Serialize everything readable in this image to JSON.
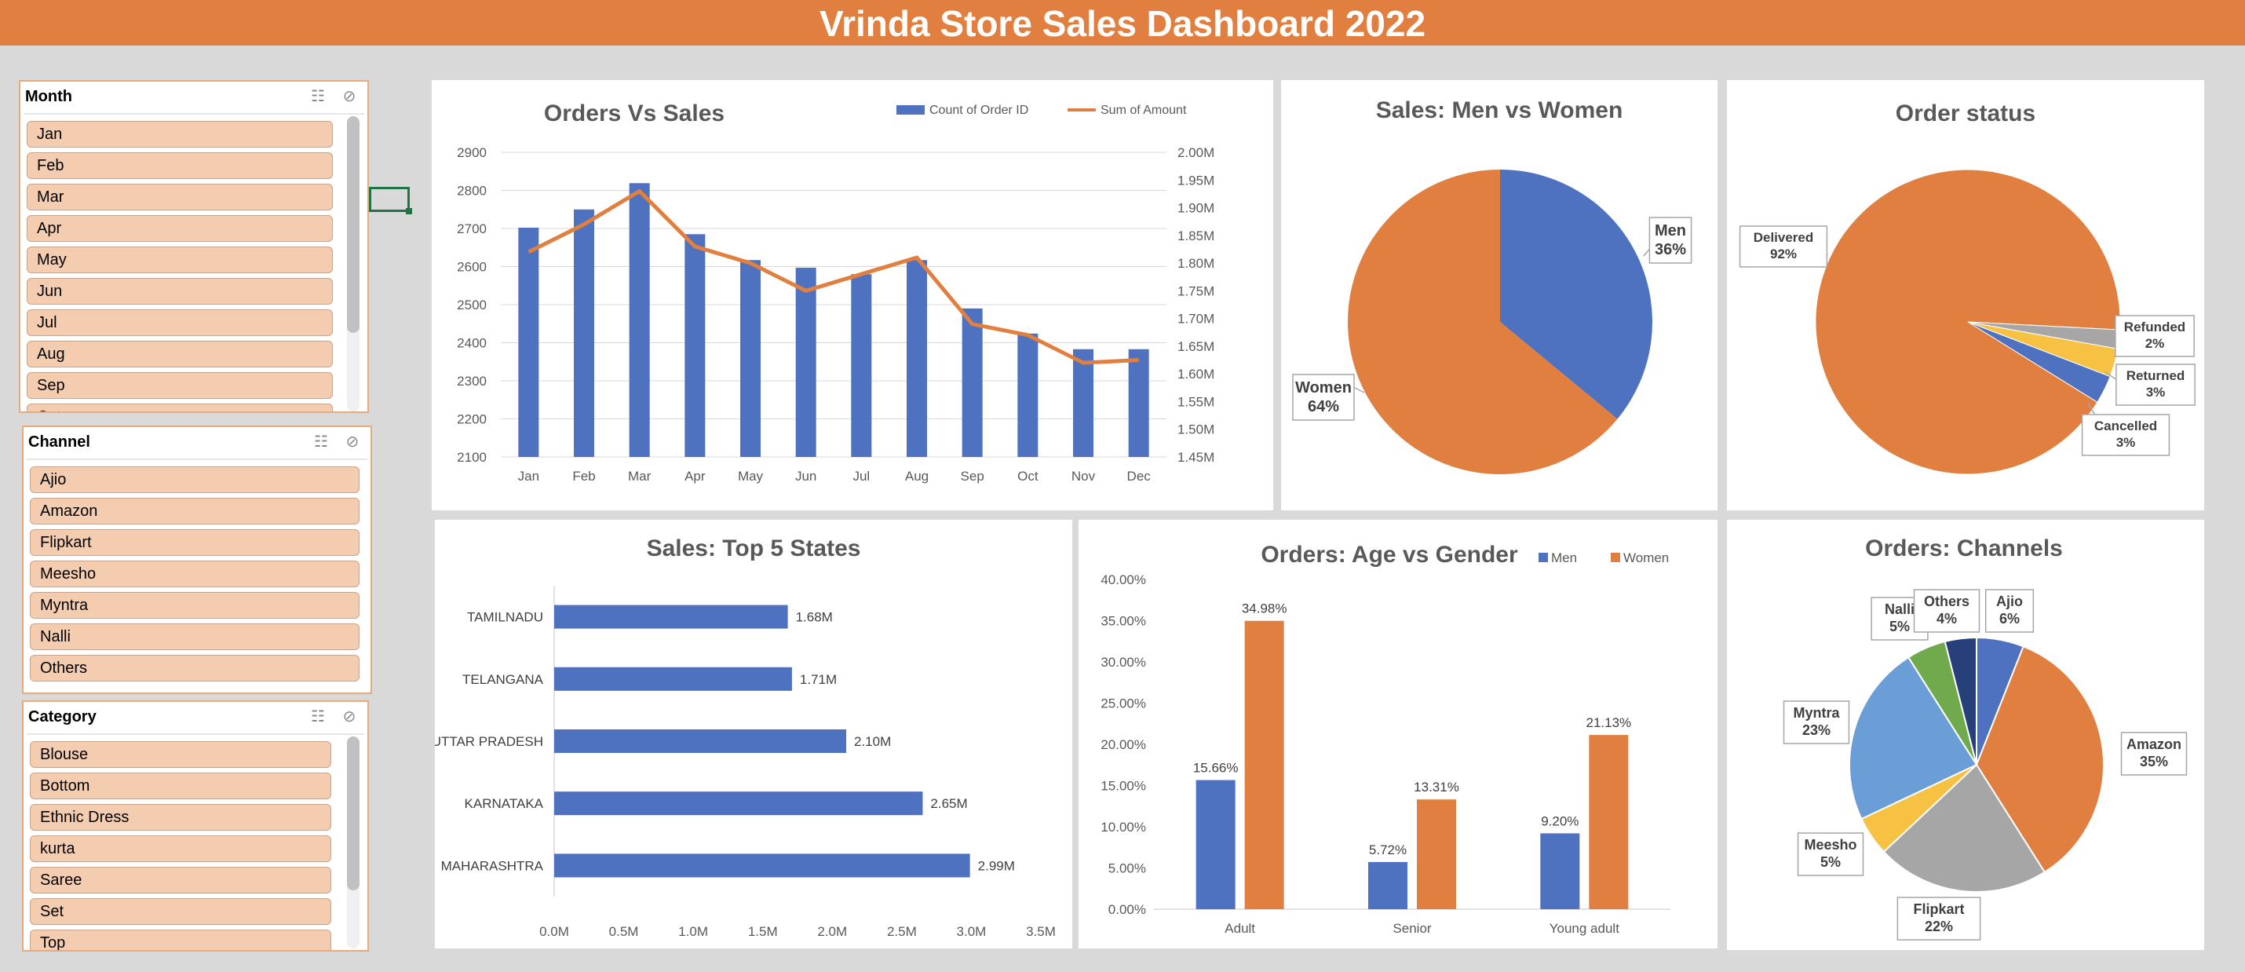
{
  "title": "Vrinda Store Sales Dashboard 2022",
  "slicers": {
    "month": {
      "title": "Month",
      "items": [
        "Jan",
        "Feb",
        "Mar",
        "Apr",
        "May",
        "Jun",
        "Jul",
        "Aug",
        "Sep",
        "Oct"
      ]
    },
    "channel": {
      "title": "Channel",
      "items": [
        "Ajio",
        "Amazon",
        "Flipkart",
        "Meesho",
        "Myntra",
        "Nalli",
        "Others"
      ]
    },
    "category": {
      "title": "Category",
      "items": [
        "Blouse",
        "Bottom",
        "Ethnic Dress",
        "kurta",
        "Saree",
        "Set",
        "Top"
      ]
    }
  },
  "colors": {
    "blue": "#4e71c0",
    "orange": "#e07f3f",
    "gray": "#a6a6a6",
    "yellow": "#f7c243",
    "lightblue": "#6b9dd6",
    "green": "#71a94d",
    "navy": "#27407a"
  },
  "chart_data": [
    {
      "id": "orders-vs-sales",
      "type": "bar+line",
      "title": "Orders Vs Sales",
      "categories": [
        "Jan",
        "Feb",
        "Mar",
        "Apr",
        "May",
        "Jun",
        "Jul",
        "Aug",
        "Sep",
        "Oct",
        "Nov",
        "Dec"
      ],
      "series": [
        {
          "name": "Count of Order ID",
          "type": "bar",
          "axis": "left",
          "values": [
            2702,
            2750,
            2819,
            2685,
            2617,
            2597,
            2580,
            2617,
            2490,
            2424,
            2383,
            2383
          ]
        },
        {
          "name": "Sum of Amount",
          "type": "line",
          "axis": "right",
          "values": [
            1.82,
            1.87,
            1.93,
            1.83,
            1.8,
            1.75,
            1.78,
            1.81,
            1.69,
            1.67,
            1.62,
            1.625
          ]
        }
      ],
      "ylim_left": [
        2100,
        2900
      ],
      "yticks_left": [
        "2900",
        "2800",
        "2700",
        "2600",
        "2500",
        "2400",
        "2300",
        "2200",
        "2100"
      ],
      "ylim_right": [
        1.45,
        2.0
      ],
      "yticks_right": [
        "2.00M",
        "1.95M",
        "1.90M",
        "1.85M",
        "1.80M",
        "1.75M",
        "1.70M",
        "1.65M",
        "1.60M",
        "1.55M",
        "1.50M",
        "1.45M"
      ],
      "legend": "top-right"
    },
    {
      "id": "sales-men-women",
      "type": "pie",
      "title": "Sales: Men vs Women",
      "slices": [
        {
          "name": "Men",
          "value": 36,
          "label": "36%"
        },
        {
          "name": "Women",
          "value": 64,
          "label": "64%"
        }
      ]
    },
    {
      "id": "order-status",
      "type": "pie",
      "title": "Order status",
      "slices": [
        {
          "name": "Delivered",
          "value": 92,
          "label": "92%"
        },
        {
          "name": "Refunded",
          "value": 2,
          "label": "2%"
        },
        {
          "name": "Returned",
          "value": 3,
          "label": "3%"
        },
        {
          "name": "Cancelled",
          "value": 3,
          "label": "3%"
        }
      ]
    },
    {
      "id": "top-states",
      "type": "bar",
      "orientation": "horizontal",
      "title": "Sales: Top 5 States",
      "categories": [
        "TAMILNADU",
        "TELANGANA",
        "UTTAR PRADESH",
        "KARNATAKA",
        "MAHARASHTRA"
      ],
      "values": [
        1.68,
        1.71,
        2.1,
        2.65,
        2.99
      ],
      "value_labels": [
        "1.68M",
        "1.71M",
        "2.10M",
        "2.65M",
        "2.99M"
      ],
      "xlim": [
        0,
        3.5
      ],
      "xticks": [
        "0.0M",
        "0.5M",
        "1.0M",
        "1.5M",
        "2.0M",
        "2.5M",
        "3.0M",
        "3.5M"
      ]
    },
    {
      "id": "age-gender",
      "type": "bar",
      "title": "Orders: Age vs Gender",
      "categories": [
        "Adult",
        "Senior",
        "Young adult"
      ],
      "series": [
        {
          "name": "Men",
          "values": [
            15.66,
            5.72,
            9.2
          ],
          "labels": [
            "15.66%",
            "5.72%",
            "9.20%"
          ]
        },
        {
          "name": "Women",
          "values": [
            34.98,
            13.31,
            21.13
          ],
          "labels": [
            "34.98%",
            "13.31%",
            "21.13%"
          ]
        }
      ],
      "ylim": [
        0,
        40
      ],
      "yticks": [
        "40.00%",
        "35.00%",
        "30.00%",
        "25.00%",
        "20.00%",
        "15.00%",
        "10.00%",
        "5.00%",
        "0.00%"
      ],
      "legend": "top-right"
    },
    {
      "id": "channels",
      "type": "pie",
      "title": "Orders: Channels",
      "slices": [
        {
          "name": "Ajio",
          "value": 6,
          "label": "6%"
        },
        {
          "name": "Amazon",
          "value": 35,
          "label": "35%"
        },
        {
          "name": "Flipkart",
          "value": 22,
          "label": "22%"
        },
        {
          "name": "Meesho",
          "value": 5,
          "label": "5%"
        },
        {
          "name": "Myntra",
          "value": 23,
          "label": "23%"
        },
        {
          "name": "Nalli",
          "value": 5,
          "label": "5%"
        },
        {
          "name": "Others",
          "value": 4,
          "label": "4%"
        }
      ]
    }
  ]
}
